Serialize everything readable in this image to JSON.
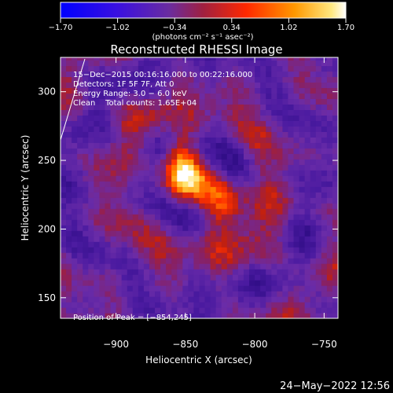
{
  "chart_data": {
    "type": "heatmap",
    "title": "Reconstructed RHESSI Image",
    "xlabel": "Heliocentric X (arcsec)",
    "ylabel": "Heliocentric Y (arcsec)",
    "xlim": [
      -940,
      -740
    ],
    "ylim": [
      135,
      325
    ],
    "x_ticks": [
      -900,
      -850,
      -800,
      -750
    ],
    "x_tick_labels": [
      "−900",
      "−850",
      "−800",
      "−750"
    ],
    "y_ticks": [
      150,
      200,
      250,
      300
    ],
    "y_tick_labels": [
      "150",
      "200",
      "250",
      "300"
    ],
    "colorbar": {
      "min": -1.7,
      "max": 1.7,
      "ticks": [
        -1.7,
        -1.02,
        -0.34,
        0.34,
        1.02,
        1.7
      ],
      "tick_labels": [
        "−1.70",
        "−1.02",
        "−0.34",
        "0.34",
        "1.02",
        "1.70"
      ],
      "unit_label": "(photons cm⁻² s⁻¹ asec⁻²)",
      "colors": [
        "#0000ff",
        "#5a1fd0",
        "#6a2ca0",
        "#b02030",
        "#ff3000",
        "#ff9000",
        "#ffe060",
        "#ffffff"
      ]
    },
    "annotations": {
      "time_range": "15−Dec−2015 00:16:16.000 to 00:22:16.000",
      "detectors": "Detectors: 1F 5F 7F, Att 0",
      "energy_range": "Energy Range: 3.0 − 6.0 keV",
      "method_counts": "Clean    Total counts: 1.65E+04",
      "peak": "Position of Peak = [−854,245]"
    },
    "peak_position": [
      -854,
      245
    ],
    "sources": [
      {
        "x": -854,
        "y": 245,
        "intensity": 1.7
      },
      {
        "x": -822,
        "y": 218,
        "intensity": 1.4
      }
    ]
  },
  "footer": {
    "date": "24−May−2022 12:56"
  }
}
